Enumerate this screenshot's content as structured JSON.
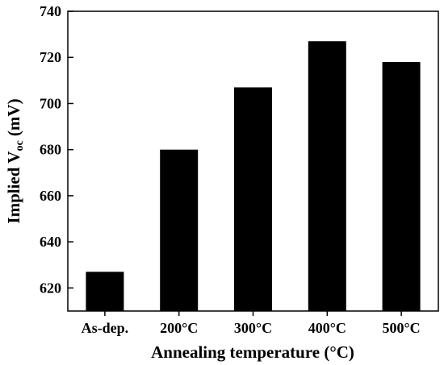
{
  "chart_data": {
    "type": "bar",
    "categories": [
      "As-dep.",
      "200°C",
      "300°C",
      "400°C",
      "500°C"
    ],
    "values": [
      627,
      680,
      707,
      727,
      718
    ],
    "xlabel": "Annealing temperature (°C)",
    "ylabel_main": "Implied V",
    "ylabel_sub": "oc",
    "ylabel_unit": " (mV)",
    "ylim": [
      610,
      740
    ],
    "yticks": [
      620,
      640,
      660,
      680,
      700,
      720,
      740
    ],
    "bar_color": "#000000",
    "grid": false
  }
}
